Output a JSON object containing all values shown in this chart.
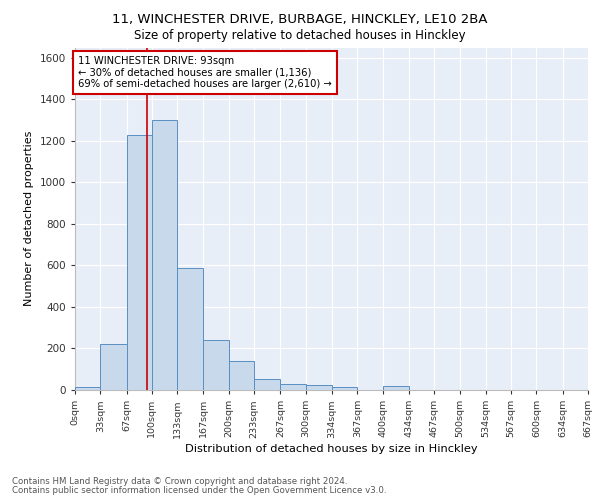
{
  "title_line1": "11, WINCHESTER DRIVE, BURBAGE, HINCKLEY, LE10 2BA",
  "title_line2": "Size of property relative to detached houses in Hinckley",
  "xlabel": "Distribution of detached houses by size in Hinckley",
  "ylabel": "Number of detached properties",
  "bar_color": "#c9d9ec",
  "bar_edge_color": "#5a8fc2",
  "background_color": "#e8eef7",
  "grid_color": "#ffffff",
  "annotation_text": "11 WINCHESTER DRIVE: 93sqm\n← 30% of detached houses are smaller (1,136)\n69% of semi-detached houses are larger (2,610) →",
  "annotation_box_color": "#ffffff",
  "annotation_box_edge": "#cc0000",
  "vline_x": 93,
  "vline_color": "#cc0000",
  "footnote_line1": "Contains HM Land Registry data © Crown copyright and database right 2024.",
  "footnote_line2": "Contains public sector information licensed under the Open Government Licence v3.0.",
  "bin_edges": [
    0,
    33,
    67,
    100,
    133,
    167,
    200,
    233,
    267,
    300,
    334,
    367,
    400,
    434,
    467,
    500,
    534,
    567,
    600,
    634,
    667
  ],
  "bin_counts": [
    15,
    220,
    1230,
    1300,
    590,
    240,
    140,
    55,
    28,
    22,
    15,
    0,
    18,
    0,
    0,
    0,
    0,
    0,
    0,
    0
  ],
  "ylim": [
    0,
    1650
  ],
  "xlim": [
    0,
    667
  ]
}
